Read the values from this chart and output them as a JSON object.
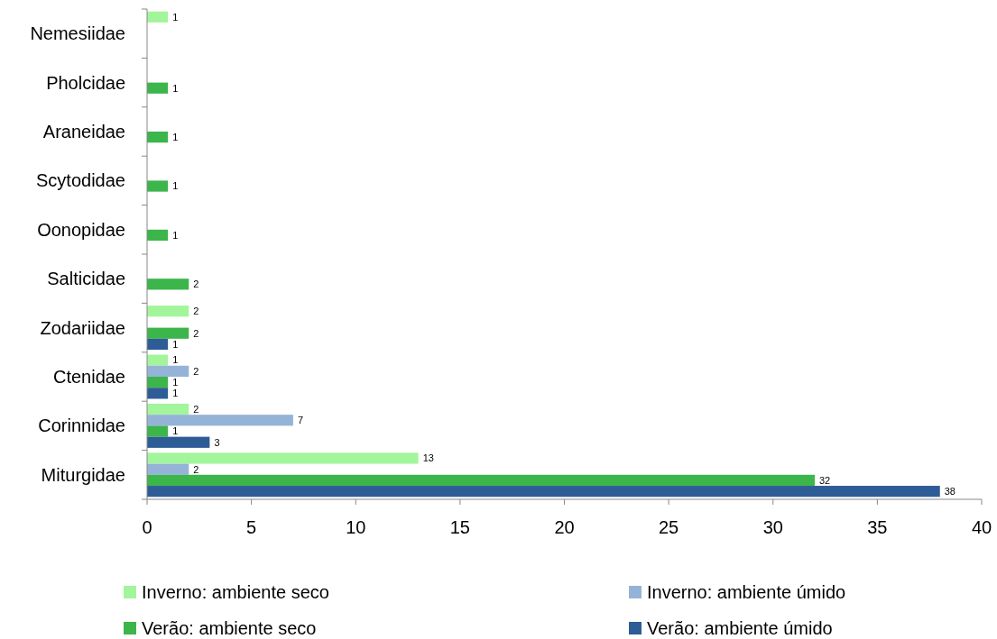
{
  "chart_data": {
    "type": "bar",
    "orientation": "horizontal",
    "categories": [
      "Nemesiidae",
      "Pholcidae",
      "Araneidae",
      "Scytodidae",
      "Oonopidae",
      "Salticidae",
      "Zodariidae",
      "Ctenidae",
      "Corinnidae",
      "Miturgidae"
    ],
    "series": [
      {
        "name": "Inverno: ambiente seco",
        "color": "#a3f59c",
        "values": [
          1,
          null,
          null,
          null,
          null,
          null,
          2,
          1,
          2,
          13
        ]
      },
      {
        "name": "Inverno: ambiente úmido",
        "color": "#95b3d7",
        "values": [
          null,
          null,
          null,
          null,
          null,
          null,
          null,
          2,
          7,
          2
        ]
      },
      {
        "name": "Verão: ambiente seco",
        "color": "#3cb54a",
        "values": [
          null,
          1,
          1,
          1,
          1,
          2,
          2,
          1,
          1,
          32
        ]
      },
      {
        "name": "Verão: ambiente úmido",
        "color": "#2e5c96",
        "values": [
          null,
          null,
          null,
          null,
          null,
          null,
          1,
          1,
          3,
          38
        ]
      }
    ],
    "xlim": [
      0,
      40
    ],
    "xticks": [
      0,
      5,
      10,
      15,
      20,
      25,
      30,
      35,
      40
    ],
    "data_labels": true,
    "legend": "bottom",
    "grid": false
  }
}
